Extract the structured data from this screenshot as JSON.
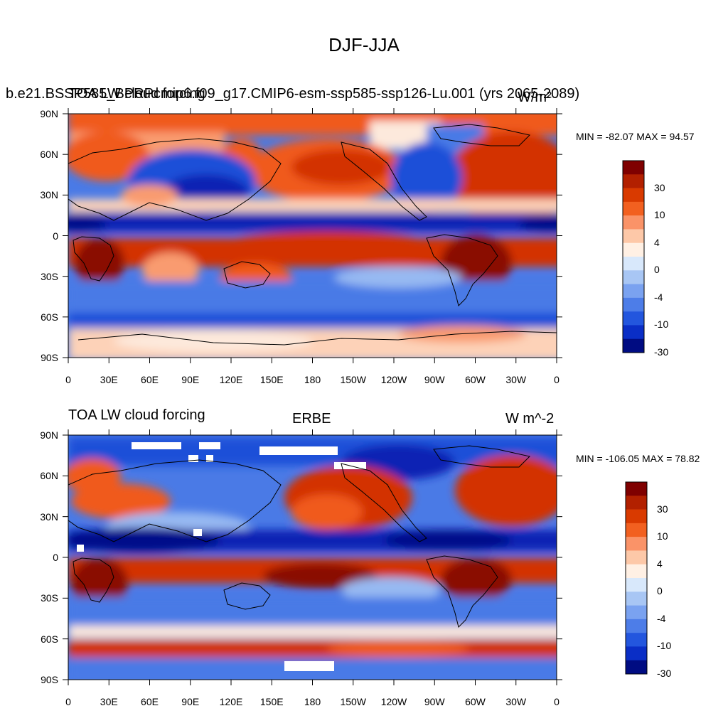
{
  "title": "DJF-JJA",
  "panels": [
    {
      "id": "top",
      "left_title": "b.e21.BSSP585_BPRPcmip6.f09_g17.CMIP6-esm-ssp585-ssp126-Lu.001 (yrs 2065-2089)",
      "left_title_overlay": "TOA LW cloud forcing",
      "center_title": "",
      "units": "W/m²",
      "minmax": "MIN = -82.07 MAX =  94.57"
    },
    {
      "id": "bottom",
      "left_title": "TOA LW cloud forcing",
      "center_title": "ERBE",
      "units": "W m^-2",
      "minmax": "MIN = -106.05 MAX =  78.82"
    }
  ],
  "lat_labels": [
    "90N",
    "60N",
    "30N",
    "0",
    "30S",
    "60S",
    "90S"
  ],
  "lon_labels": [
    "0",
    "30E",
    "60E",
    "90E",
    "120E",
    "150E",
    "180",
    "150W",
    "120W",
    "90W",
    "60W",
    "30W",
    "0"
  ],
  "colorbar": {
    "labels": [
      "30",
      "10",
      "4",
      "0",
      "-4",
      "-10",
      "-30"
    ],
    "colors": [
      "#7f0000",
      "#b22000",
      "#d93a00",
      "#f26020",
      "#fa9368",
      "#fdc8a8",
      "#fff0e4",
      "#d8e8fb",
      "#a8c6f4",
      "#7aa2f0",
      "#4d7de8",
      "#2356de",
      "#0a2ec6",
      "#000c82"
    ]
  },
  "map_colors": {
    "deep_red": "#8a0a00",
    "red": "#d33000",
    "orange": "#f05a1e",
    "salmon": "#f99b70",
    "peach": "#fdd2b8",
    "pale": "#fde9dc",
    "pale_blue": "#d4e4fa",
    "light_blue": "#97b9f2",
    "mid_blue": "#4a7ae6",
    "blue": "#1f4fd8",
    "dark_blue": "#0a24b4",
    "navy": "#00108a"
  }
}
